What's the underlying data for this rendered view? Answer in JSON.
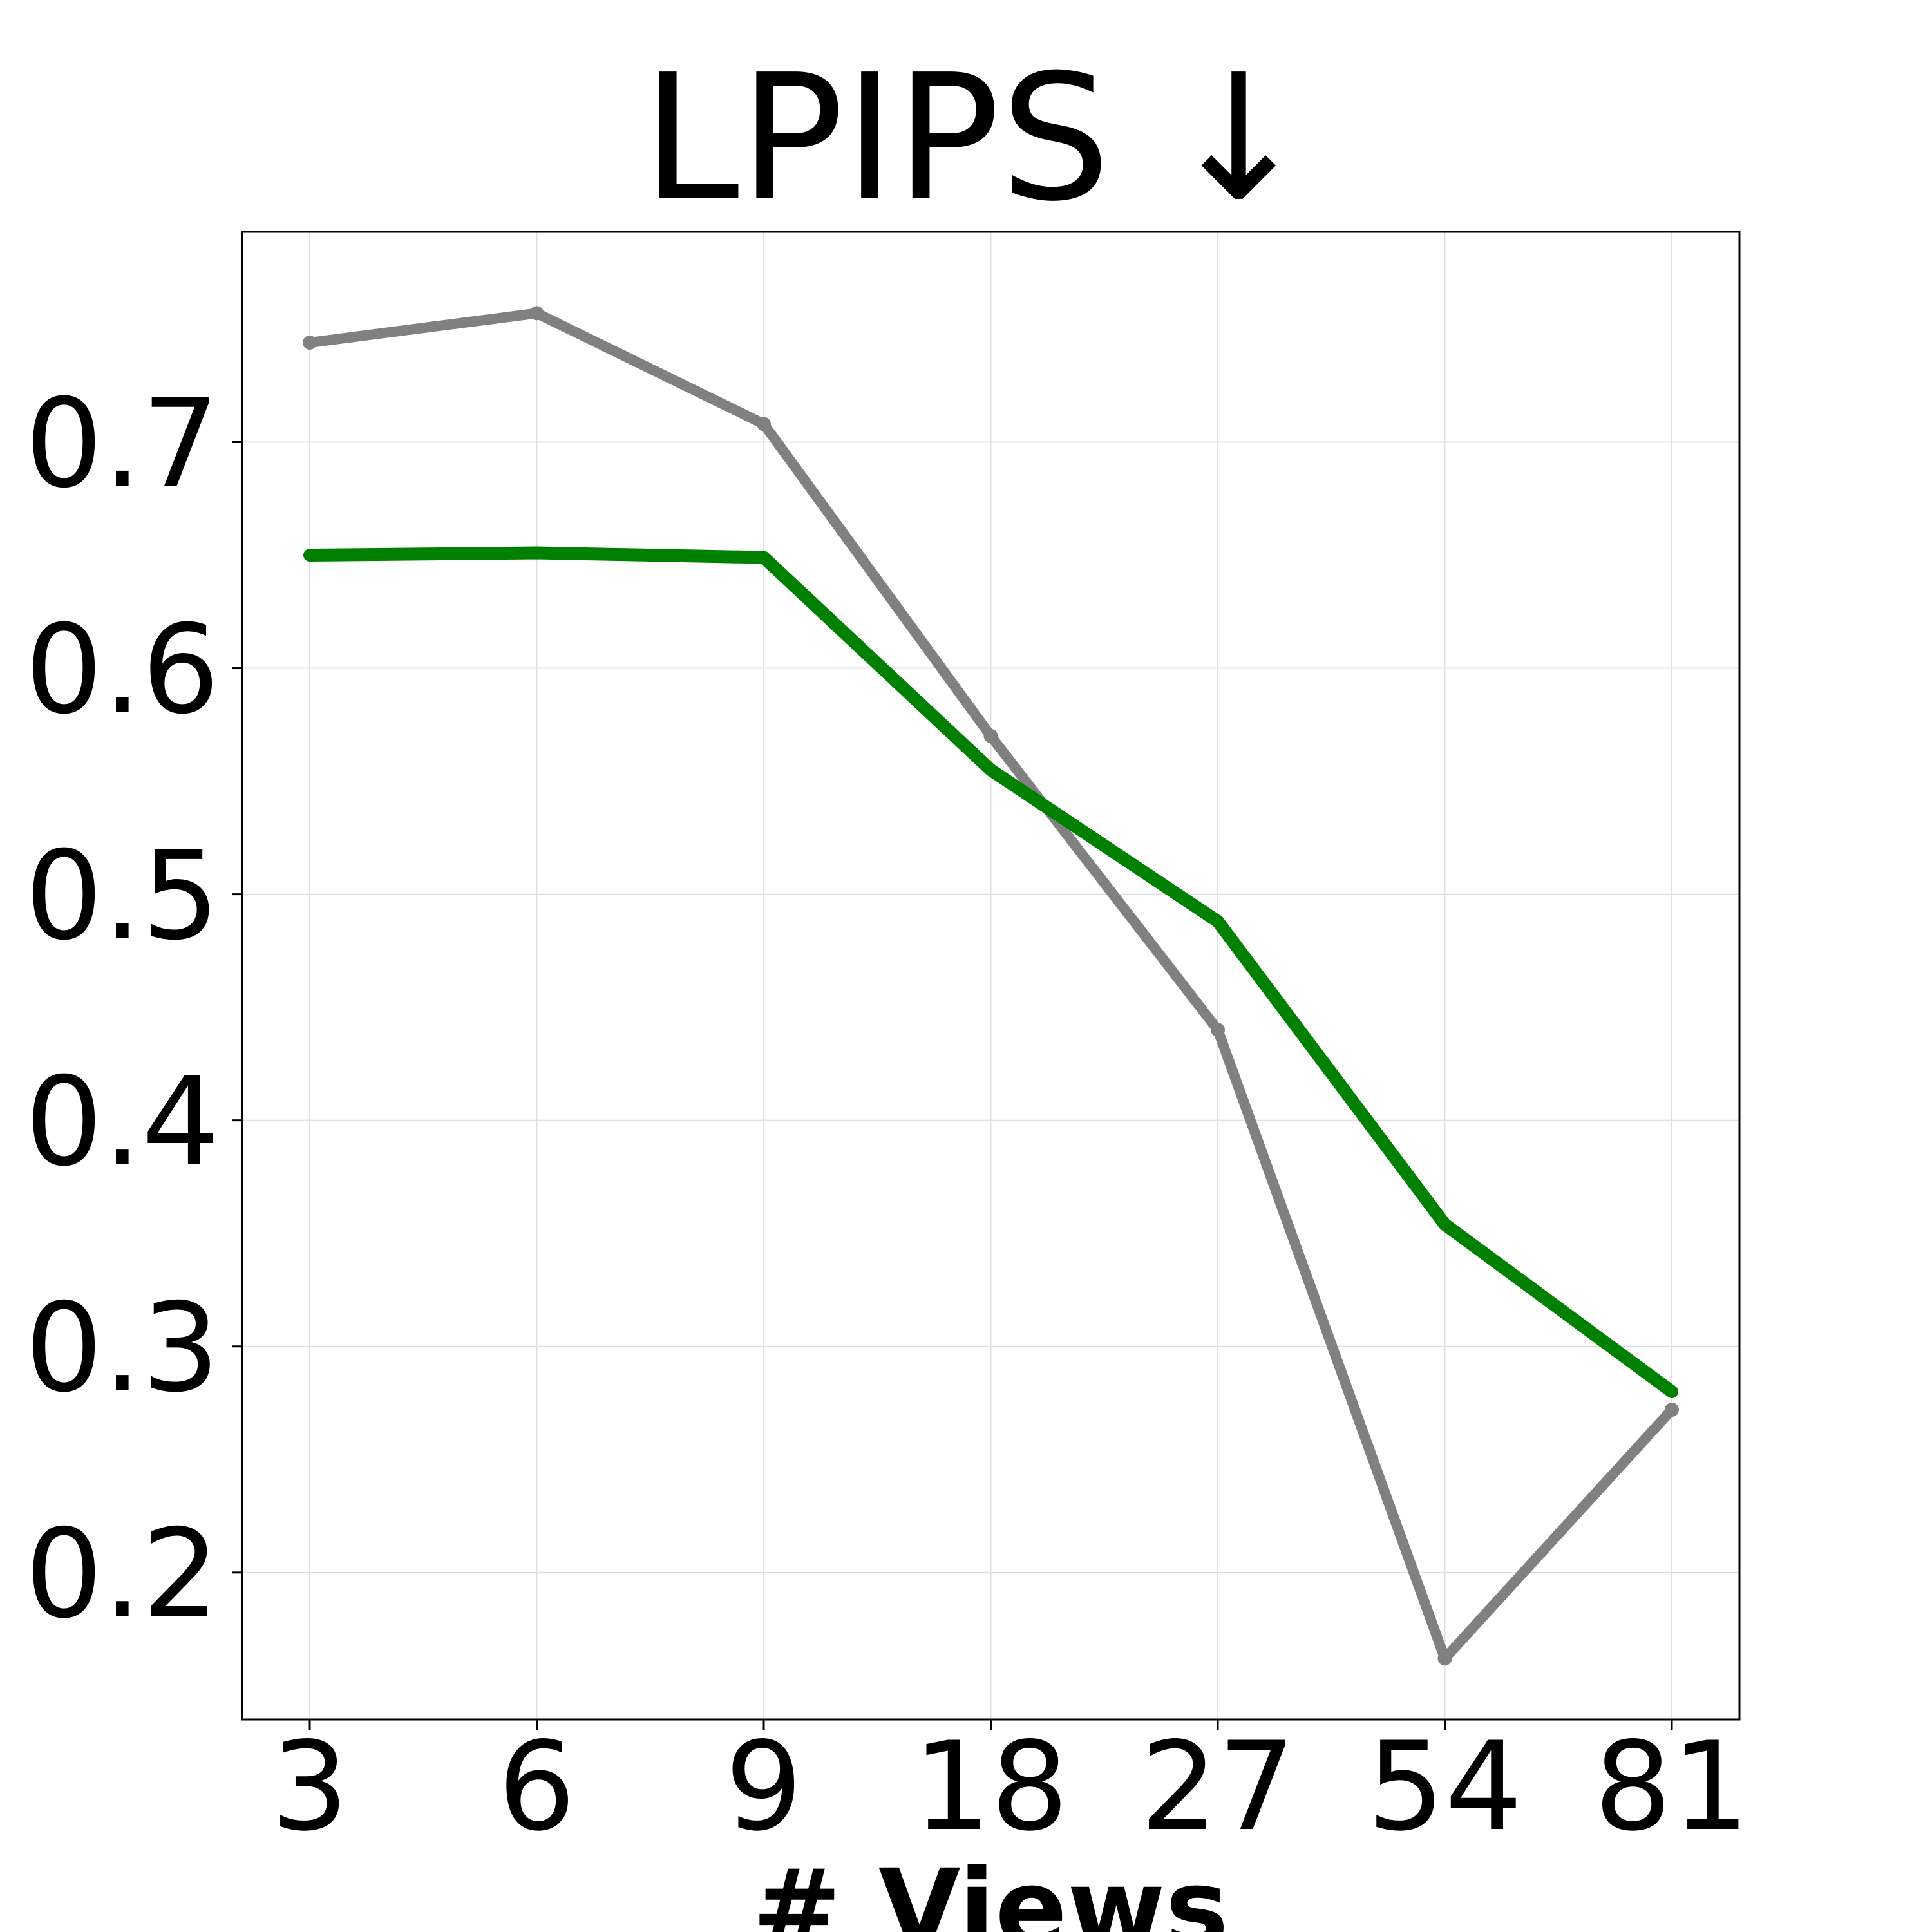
{
  "chart_data": {
    "type": "line",
    "title": "LPIPS ↓",
    "xlabel": "# Views",
    "ylabel": "",
    "categories": [
      "3",
      "6",
      "9",
      "18",
      "27",
      "54",
      "81"
    ],
    "yticks": [
      "0.2",
      "0.3",
      "0.4",
      "0.5",
      "0.6",
      "0.7"
    ],
    "ylim": [
      0.135,
      0.793
    ],
    "grid": true,
    "series": [
      {
        "color": "#808080",
        "values": [
          0.744,
          0.757,
          0.708,
          0.57,
          0.44,
          0.162,
          0.272
        ]
      },
      {
        "color": "#008000",
        "values": [
          0.65,
          0.651,
          0.649,
          0.555,
          0.488,
          0.354,
          0.28
        ]
      }
    ]
  }
}
